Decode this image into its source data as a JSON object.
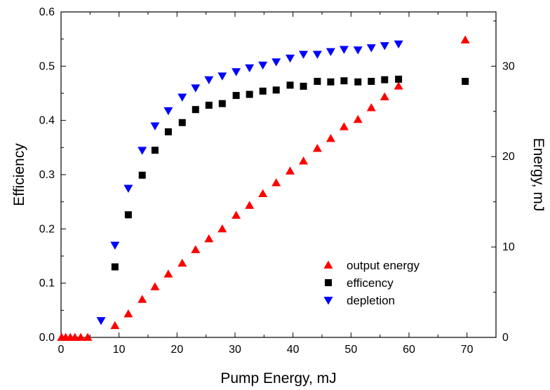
{
  "chart_data": {
    "type": "scatter",
    "xlabel": "Pump Energy, mJ",
    "ylabel": "Efficiency",
    "y2label": "Energy, mJ",
    "xlim": [
      0,
      75
    ],
    "ylim": [
      0,
      0.6
    ],
    "y2lim": [
      0,
      36
    ],
    "xticks": [
      0,
      10,
      20,
      30,
      40,
      50,
      60,
      70
    ],
    "yticks": [
      0.0,
      0.1,
      0.2,
      0.3,
      0.4,
      0.5,
      0.6
    ],
    "y2ticks": [
      0,
      10,
      20,
      30
    ],
    "xtick_labels": [
      "0",
      "10",
      "20",
      "30",
      "40",
      "50",
      "60",
      "70"
    ],
    "ytick_labels": [
      "0.0",
      "0.1",
      "0.2",
      "0.3",
      "0.4",
      "0.5",
      "0.6"
    ],
    "y2tick_labels": [
      "0",
      "10",
      "20",
      "30"
    ],
    "grid": false,
    "legend_position": "lower-right",
    "series": [
      {
        "name": "output energy",
        "axis": "right",
        "marker": "triangle-up",
        "color": "#ff0000",
        "points": [
          [
            0.1,
            0
          ],
          [
            0.8,
            0
          ],
          [
            1.6,
            0
          ],
          [
            2.4,
            0
          ],
          [
            3.4,
            0
          ],
          [
            4.6,
            0
          ],
          [
            9.3,
            1.3
          ],
          [
            11.6,
            2.6
          ],
          [
            14.0,
            4.2
          ],
          [
            16.2,
            5.6
          ],
          [
            18.5,
            7.0
          ],
          [
            20.9,
            8.2
          ],
          [
            23.2,
            9.7
          ],
          [
            25.5,
            10.9
          ],
          [
            27.8,
            12.0
          ],
          [
            30.2,
            13.5
          ],
          [
            32.5,
            14.6
          ],
          [
            34.8,
            15.9
          ],
          [
            37.1,
            17.1
          ],
          [
            39.5,
            18.4
          ],
          [
            41.8,
            19.5
          ],
          [
            44.2,
            20.9
          ],
          [
            46.5,
            22.0
          ],
          [
            48.8,
            23.3
          ],
          [
            51.2,
            24.1
          ],
          [
            53.5,
            25.4
          ],
          [
            55.8,
            26.6
          ],
          [
            58.2,
            27.8
          ],
          [
            69.7,
            32.9
          ]
        ]
      },
      {
        "name": "efficency",
        "axis": "left",
        "marker": "square",
        "color": "#000000",
        "points": [
          [
            9.3,
            0.13
          ],
          [
            11.6,
            0.226
          ],
          [
            14.0,
            0.299
          ],
          [
            16.2,
            0.345
          ],
          [
            18.5,
            0.379
          ],
          [
            20.9,
            0.396
          ],
          [
            23.2,
            0.42
          ],
          [
            25.5,
            0.428
          ],
          [
            27.8,
            0.431
          ],
          [
            30.2,
            0.446
          ],
          [
            32.5,
            0.448
          ],
          [
            34.8,
            0.454
          ],
          [
            37.1,
            0.456
          ],
          [
            39.5,
            0.465
          ],
          [
            41.8,
            0.463
          ],
          [
            44.2,
            0.472
          ],
          [
            46.5,
            0.471
          ],
          [
            48.8,
            0.473
          ],
          [
            51.2,
            0.471
          ],
          [
            53.5,
            0.472
          ],
          [
            55.8,
            0.475
          ],
          [
            58.2,
            0.476
          ],
          [
            69.7,
            0.472
          ]
        ]
      },
      {
        "name": "depletion",
        "axis": "left",
        "marker": "triangle-down",
        "color": "#0000ff",
        "points": [
          [
            6.9,
            0.031
          ],
          [
            9.3,
            0.17
          ],
          [
            11.6,
            0.275
          ],
          [
            14.0,
            0.345
          ],
          [
            16.2,
            0.39
          ],
          [
            18.5,
            0.418
          ],
          [
            20.9,
            0.443
          ],
          [
            23.2,
            0.46
          ],
          [
            25.5,
            0.475
          ],
          [
            27.8,
            0.482
          ],
          [
            30.2,
            0.49
          ],
          [
            32.5,
            0.497
          ],
          [
            34.8,
            0.502
          ],
          [
            37.1,
            0.508
          ],
          [
            39.5,
            0.515
          ],
          [
            41.8,
            0.522
          ],
          [
            44.2,
            0.522
          ],
          [
            46.5,
            0.527
          ],
          [
            48.8,
            0.531
          ],
          [
            51.2,
            0.53
          ],
          [
            53.5,
            0.534
          ],
          [
            55.8,
            0.538
          ],
          [
            58.2,
            0.541
          ]
        ]
      }
    ]
  }
}
